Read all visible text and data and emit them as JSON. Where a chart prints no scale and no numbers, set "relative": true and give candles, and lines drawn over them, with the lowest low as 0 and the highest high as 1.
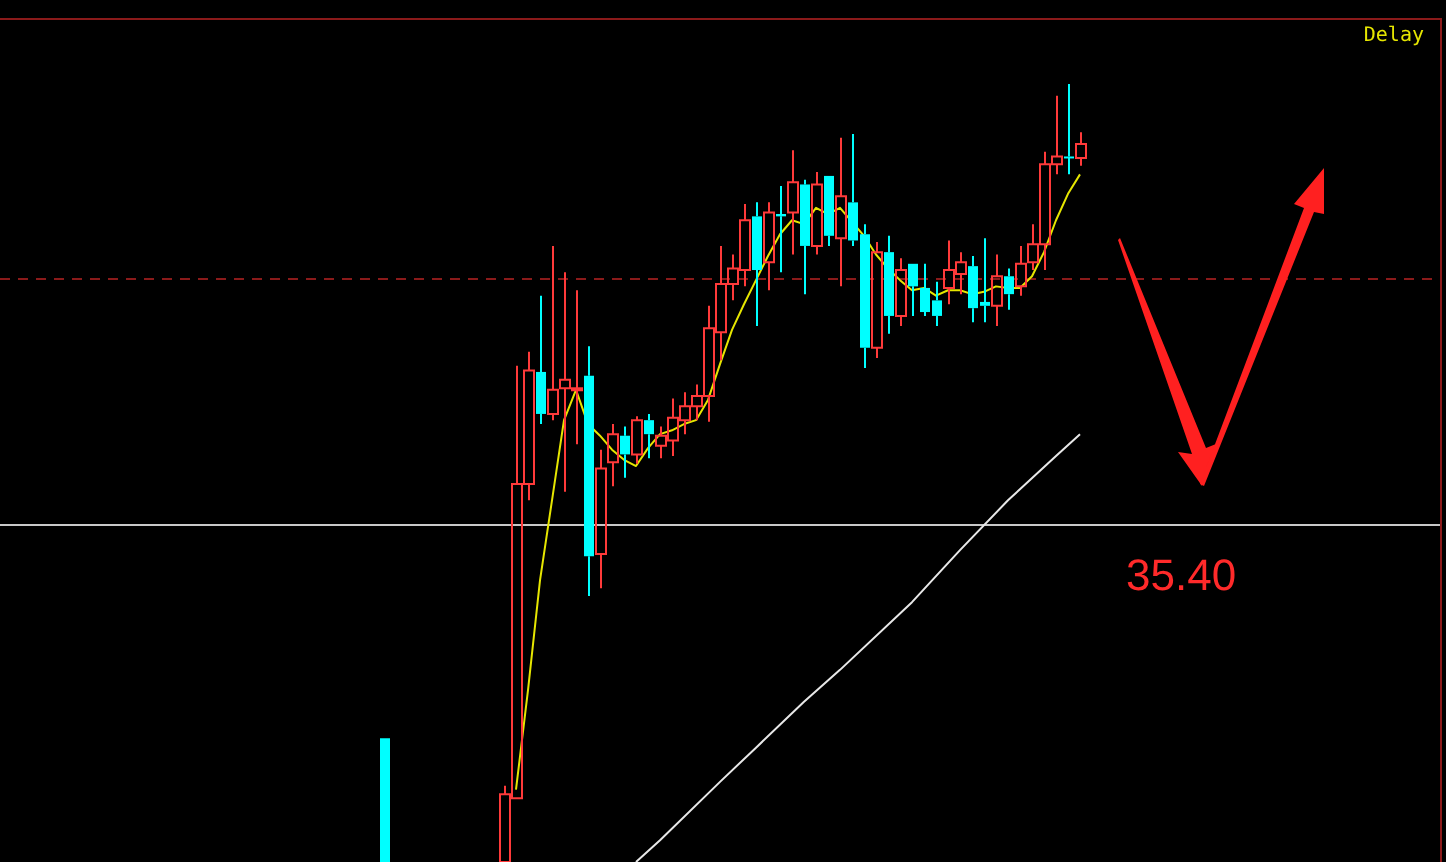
{
  "chart_data": {
    "type": "candlestick",
    "relative": true,
    "tick_labels": false,
    "categories": [
      null,
      null,
      null,
      null,
      null,
      null,
      null,
      null,
      null,
      null,
      null,
      null,
      null,
      null,
      null,
      null,
      null,
      null,
      null,
      null,
      null,
      null,
      null,
      null,
      null,
      null,
      null,
      null,
      null,
      null,
      null,
      null,
      null,
      null,
      null,
      null,
      null,
      null,
      null,
      null,
      null,
      null,
      null,
      null,
      null,
      null,
      null,
      null,
      null,
      null,
      null,
      null,
      null,
      null,
      null,
      null,
      null,
      null,
      null,
      null,
      null,
      null,
      null,
      null,
      null,
      null,
      null,
      null,
      null,
      null,
      null,
      null,
      null,
      null,
      null,
      null,
      null,
      null,
      null,
      null,
      null,
      null,
      null,
      null,
      null,
      null,
      null,
      null,
      null,
      null,
      null,
      null,
      null,
      null,
      null,
      null,
      null,
      null,
      null,
      null,
      null,
      null,
      null,
      null,
      null,
      null,
      null,
      null,
      null,
      null,
      null,
      null,
      null,
      null,
      null,
      null,
      null,
      null,
      null,
      null,
      null
    ],
    "ohlc": [
      null,
      null,
      null,
      null,
      null,
      null,
      null,
      null,
      null,
      null,
      null,
      null,
      null,
      null,
      null,
      null,
      null,
      null,
      null,
      null,
      null,
      null,
      null,
      null,
      null,
      null,
      null,
      null,
      null,
      null,
      null,
      null,
      [
        0.159,
        0.159,
        0,
        0
      ],
      null,
      null,
      null,
      null,
      null,
      null,
      null,
      null,
      null,
      [
        0,
        0.098,
        0,
        0.087
      ],
      [
        0.082,
        0.638,
        0.082,
        0.486
      ],
      [
        0.486,
        0.656,
        0.465,
        0.632
      ],
      [
        0.63,
        0.728,
        0.563,
        0.576
      ],
      [
        0.576,
        0.792,
        0.568,
        0.607
      ],
      [
        0.609,
        0.758,
        0.476,
        0.62
      ],
      [
        0.607,
        0.735,
        0.537,
        0.609
      ],
      [
        0.625,
        0.663,
        0.342,
        0.393
      ],
      [
        0.396,
        0.53,
        0.352,
        0.506
      ],
      [
        0.514,
        0.563,
        0.483,
        0.55
      ],
      [
        0.548,
        0.56,
        0.494,
        0.524
      ],
      [
        0.524,
        0.573,
        0.512,
        0.568
      ],
      [
        0.568,
        0.576,
        0.519,
        0.55
      ],
      [
        0.535,
        0.56,
        0.519,
        0.548
      ],
      [
        0.542,
        0.596,
        0.522,
        0.571
      ],
      [
        0.568,
        0.604,
        0.55,
        0.586
      ],
      [
        0.586,
        0.614,
        0.568,
        0.599
      ],
      [
        0.599,
        0.715,
        0.566,
        0.686
      ],
      [
        0.681,
        0.792,
        0.645,
        0.743
      ],
      [
        0.743,
        0.781,
        0.722,
        0.763
      ],
      [
        0.761,
        0.846,
        0.74,
        0.825
      ],
      [
        0.83,
        0.848,
        0.689,
        0.761
      ],
      [
        0.771,
        0.848,
        0.735,
        0.835
      ],
      [
        0.833,
        0.869,
        0.758,
        0.83
      ],
      [
        0.835,
        0.915,
        0.781,
        0.874
      ],
      [
        0.871,
        0.877,
        0.73,
        0.792
      ],
      [
        0.792,
        0.887,
        0.781,
        0.871
      ],
      [
        0.882,
        0.882,
        0.792,
        0.805
      ],
      [
        0.802,
        0.931,
        0.74,
        0.856
      ],
      [
        0.848,
        0.936,
        0.792,
        0.799
      ],
      [
        0.807,
        0.82,
        0.635,
        0.661
      ],
      [
        0.661,
        0.797,
        0.648,
        0.784
      ],
      [
        0.784,
        0.805,
        0.679,
        0.702
      ],
      [
        0.702,
        0.776,
        0.689,
        0.761
      ],
      [
        0.769,
        0.769,
        0.702,
        0.74
      ],
      [
        0.738,
        0.769,
        0.702,
        0.707
      ],
      [
        0.722,
        0.746,
        0.689,
        0.702
      ],
      [
        0.738,
        0.799,
        0.717,
        0.761
      ],
      [
        0.756,
        0.784,
        0.73,
        0.771
      ],
      [
        0.766,
        0.779,
        0.694,
        0.712
      ],
      [
        0.72,
        0.802,
        0.694,
        0.715
      ],
      [
        0.715,
        0.781,
        0.689,
        0.753
      ],
      [
        0.753,
        0.763,
        0.71,
        0.73
      ],
      [
        0.74,
        0.792,
        0.728,
        0.769
      ],
      [
        0.771,
        0.82,
        0.761,
        0.794
      ],
      [
        0.794,
        0.913,
        0.761,
        0.897
      ],
      [
        0.897,
        0.985,
        0.884,
        0.907
      ],
      [
        0.907,
        1,
        0.884,
        0.905
      ],
      [
        0.905,
        0.938,
        0.895,
        0.923
      ],
      null,
      null,
      null,
      null,
      null,
      null,
      null,
      null,
      null,
      null,
      null,
      null,
      null,
      null,
      null,
      null,
      null,
      null,
      null,
      null,
      null,
      null,
      null,
      null,
      null,
      null,
      null,
      null,
      null,
      null
    ],
    "series": [
      {
        "type": "line",
        "color": "#e6e600",
        "values": [
          null,
          null,
          null,
          null,
          null,
          null,
          null,
          null,
          null,
          null,
          null,
          null,
          null,
          null,
          null,
          null,
          null,
          null,
          null,
          null,
          null,
          null,
          null,
          null,
          null,
          null,
          null,
          null,
          null,
          null,
          null,
          null,
          null,
          null,
          null,
          null,
          null,
          null,
          null,
          null,
          null,
          null,
          null,
          0.093,
          0.221,
          0.362,
          0.465,
          0.568,
          0.607,
          0.563,
          0.548,
          0.53,
          0.517,
          0.509,
          0.532,
          0.55,
          0.555,
          0.563,
          0.568,
          0.594,
          0.64,
          0.684,
          0.717,
          0.748,
          0.779,
          0.807,
          0.825,
          0.82,
          0.841,
          0.833,
          0.841,
          0.823,
          0.805,
          0.781,
          0.763,
          0.748,
          0.735,
          0.738,
          0.728,
          0.735,
          0.735,
          0.73,
          0.733,
          0.74,
          0.738,
          0.738,
          0.753,
          0.784,
          0.825,
          0.859,
          0.884,
          null,
          null,
          null,
          null,
          null,
          null,
          null,
          null,
          null,
          null,
          null,
          null,
          null,
          null,
          null,
          null,
          null,
          null,
          null,
          null,
          null,
          null,
          null,
          null,
          null,
          null,
          null,
          null,
          null,
          null
        ]
      },
      {
        "type": "line",
        "color": "#e8e8e8",
        "values": [
          null,
          null,
          null,
          null,
          null,
          null,
          null,
          null,
          null,
          null,
          null,
          null,
          null,
          null,
          null,
          null,
          null,
          null,
          null,
          null,
          null,
          null,
          null,
          null,
          null,
          null,
          null,
          null,
          null,
          null,
          null,
          null,
          null,
          null,
          null,
          null,
          null,
          null,
          null,
          null,
          null,
          null,
          null,
          null,
          null,
          null,
          null,
          null,
          null,
          null,
          null,
          null,
          null,
          0,
          null,
          0.028,
          null,
          null,
          null,
          null,
          0.103,
          null,
          null,
          0.147,
          null,
          null,
          null,
          0.206,
          null,
          null,
          0.247,
          null,
          null,
          null,
          null,
          null,
          0.334,
          null,
          null,
          null,
          0.401,
          null,
          null,
          null,
          0.465,
          null,
          null,
          null,
          0.522,
          null,
          0.55,
          null,
          null,
          null,
          null,
          null,
          null,
          null,
          null,
          null,
          null,
          null,
          null,
          null,
          null,
          null,
          null,
          null,
          null,
          null,
          null,
          null,
          null,
          null,
          null,
          null,
          null,
          null,
          null,
          null,
          null
        ]
      }
    ],
    "ref_lines": [
      {
        "axis": "y",
        "value": 0.434,
        "color": "#c8c8c8"
      },
      {
        "axis": "y",
        "value": 0.751,
        "color": "#8b1a1a",
        "line_style": "dashed"
      }
    ],
    "annotations": [
      "Delay",
      "35.40"
    ]
  }
}
